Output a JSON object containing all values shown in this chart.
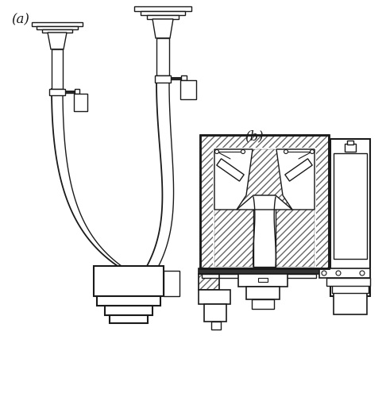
{
  "label_a": "(a)",
  "label_b": "(b)",
  "bg_color": "#ffffff",
  "line_color": "#1a1a1a",
  "figsize": [
    4.86,
    5.0
  ],
  "dpi": 100
}
